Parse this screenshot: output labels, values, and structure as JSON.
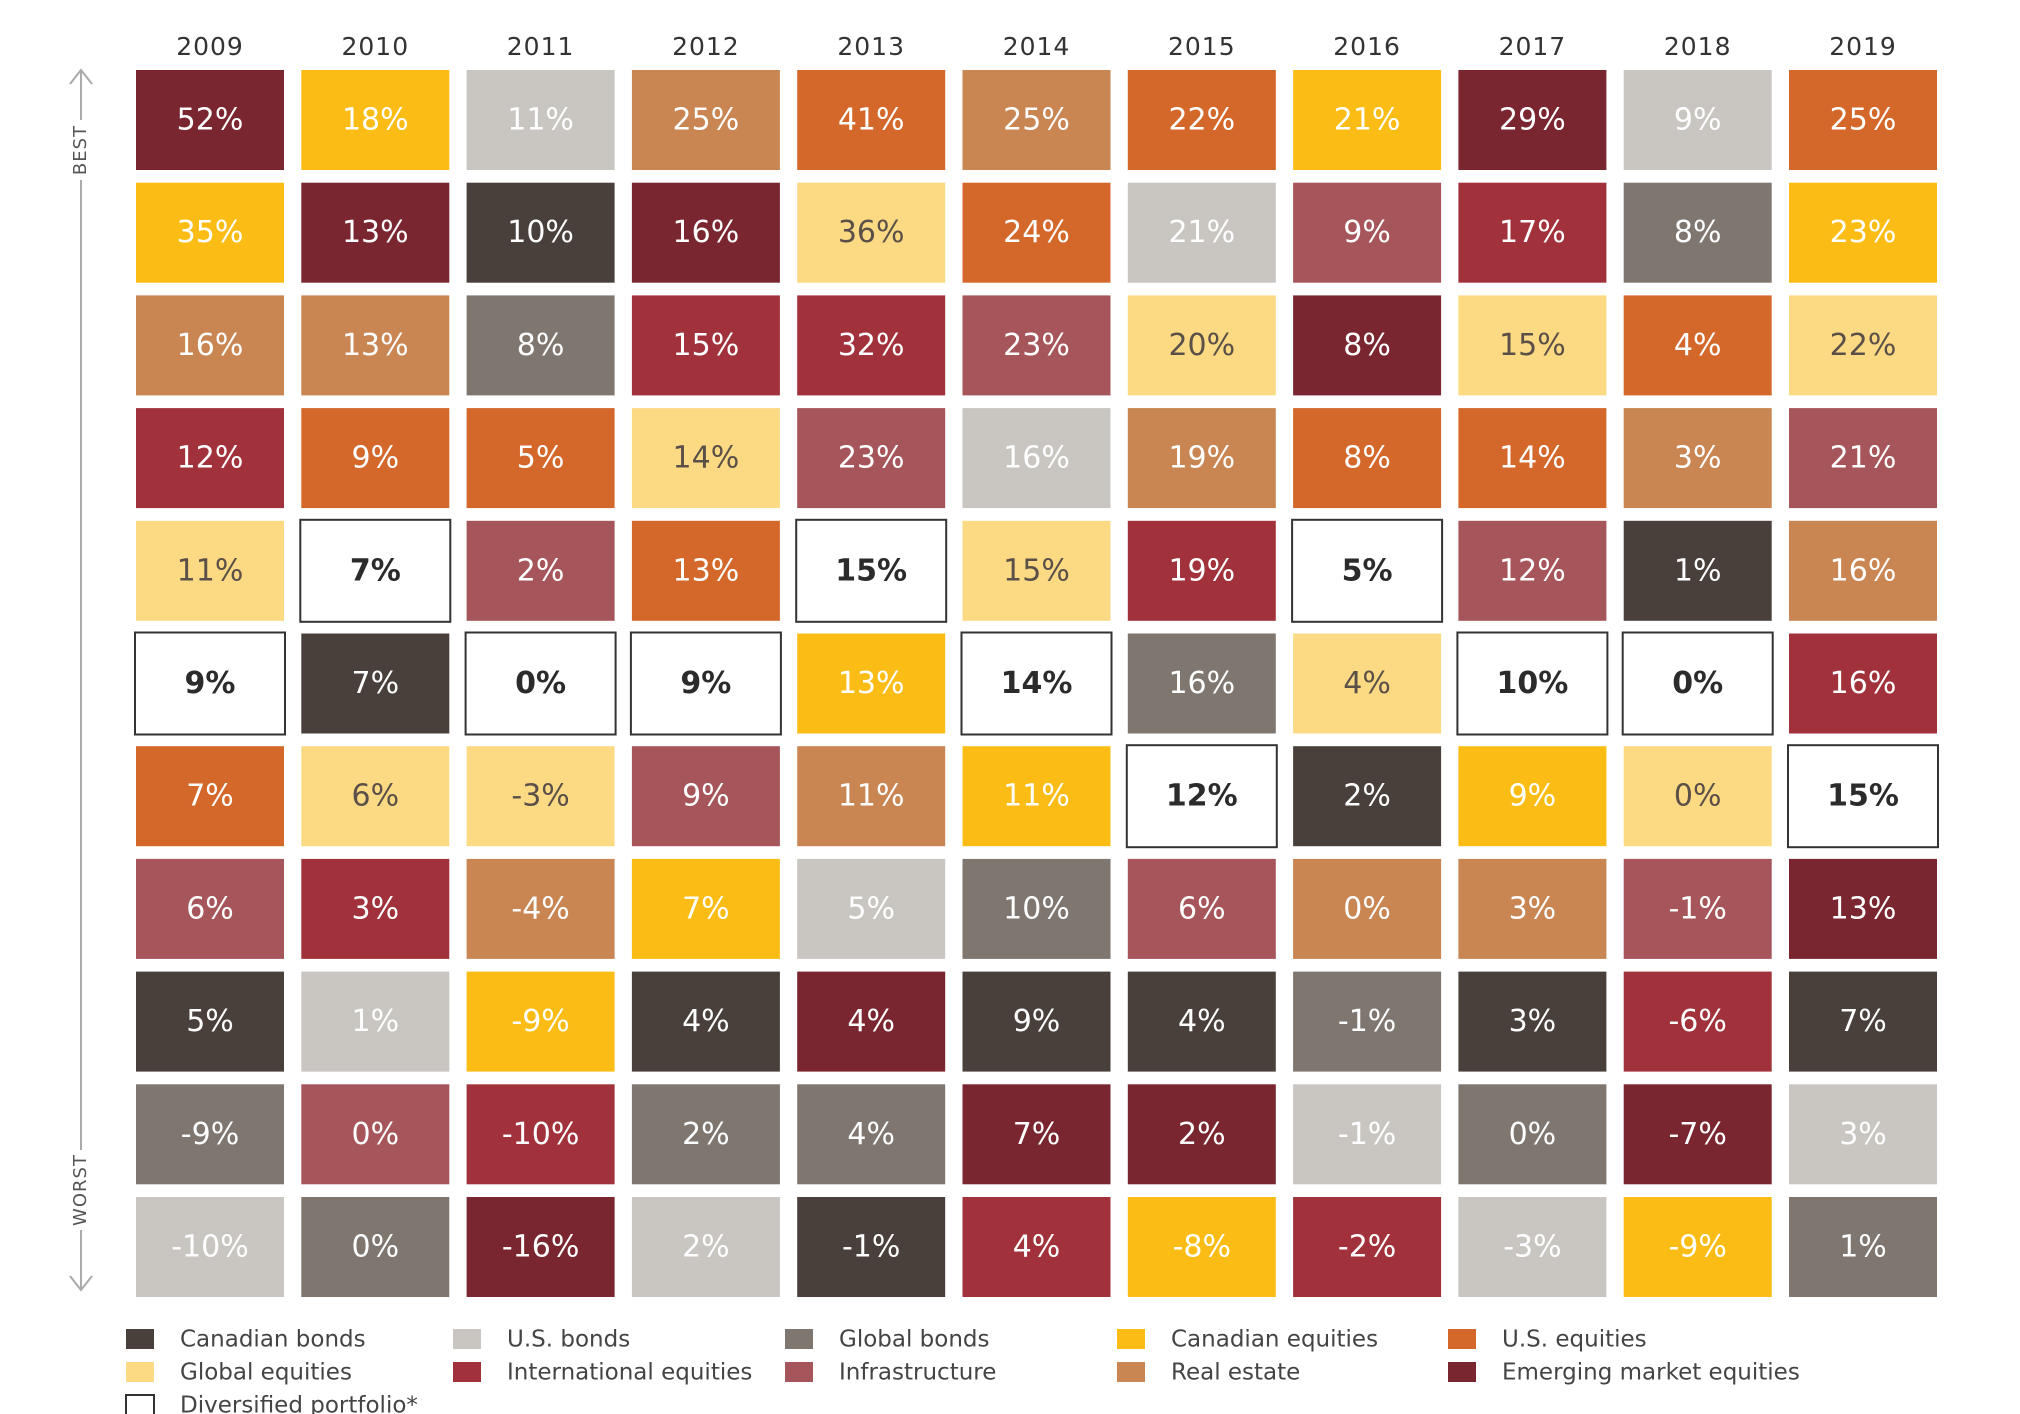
{
  "chart_data": {
    "type": "ranked-grid",
    "categories": [
      "2009",
      "2010",
      "2011",
      "2012",
      "2013",
      "2014",
      "2015",
      "2016",
      "2017",
      "2018",
      "2019"
    ],
    "best_label": "BEST",
    "worst_label": "WORST",
    "series": [
      {
        "name": "Canadian bonds",
        "color": "#4a403b"
      },
      {
        "name": "U.S. bonds",
        "color": "#c9c5c1"
      },
      {
        "name": "Global bonds",
        "color": "#7e766f"
      },
      {
        "name": "Canadian equities",
        "color": "#fbbd15"
      },
      {
        "name": "U.S. equities",
        "color": "#d4682b"
      },
      {
        "name": "Global equities",
        "color": "#fcd983"
      },
      {
        "name": "International equities",
        "color": "#a1323c"
      },
      {
        "name": "Infrastructure",
        "color": "#a6555b"
      },
      {
        "name": "Real estate",
        "color": "#c98552"
      },
      {
        "name": "Emerging market equities",
        "color": "#7a2630"
      },
      {
        "name": "Diversified portfolio*",
        "color": "#ffffff"
      }
    ],
    "columns": [
      {
        "values": [
          52,
          35,
          16,
          12,
          11,
          9,
          7,
          6,
          5,
          -9,
          -10
        ],
        "value_labels": [
          "52%",
          "35%",
          "16%",
          "12%",
          "11%",
          "9%",
          "7%",
          "6%",
          "5%",
          "-9%",
          "-10%"
        ],
        "classes": [
          "Emerging market equities",
          "Canadian equities",
          "Real estate",
          "International equities",
          "Global equities",
          "Diversified portfolio*",
          "U.S. equities",
          "Infrastructure",
          "Canadian bonds",
          "Global bonds",
          "U.S. bonds"
        ]
      },
      {
        "values": [
          18,
          13,
          13,
          9,
          7,
          7,
          6,
          3,
          1,
          0,
          0
        ],
        "value_labels": [
          "18%",
          "13%",
          "13%",
          "9%",
          "7%",
          "7%",
          "6%",
          "3%",
          "1%",
          "0%",
          "0%"
        ],
        "classes": [
          "Canadian equities",
          "Emerging market equities",
          "Real estate",
          "U.S. equities",
          "Diversified portfolio*",
          "Canadian bonds",
          "Global equities",
          "International equities",
          "U.S. bonds",
          "Infrastructure",
          "Global bonds"
        ]
      },
      {
        "values": [
          11,
          10,
          8,
          5,
          2,
          0,
          -3,
          -4,
          -9,
          -10,
          -16
        ],
        "value_labels": [
          "11%",
          "10%",
          "8%",
          "5%",
          "2%",
          "0%",
          "-3%",
          "-4%",
          "-9%",
          "-10%",
          "-16%"
        ],
        "classes": [
          "U.S. bonds",
          "Canadian bonds",
          "Global bonds",
          "U.S. equities",
          "Infrastructure",
          "Diversified portfolio*",
          "Global equities",
          "Real estate",
          "Canadian equities",
          "International equities",
          "Emerging market equities"
        ]
      },
      {
        "values": [
          25,
          16,
          15,
          14,
          13,
          9,
          9,
          7,
          4,
          2,
          2
        ],
        "value_labels": [
          "25%",
          "16%",
          "15%",
          "14%",
          "13%",
          "9%",
          "9%",
          "7%",
          "4%",
          "2%",
          "2%"
        ],
        "classes": [
          "Real estate",
          "Emerging market equities",
          "International equities",
          "Global equities",
          "U.S. equities",
          "Diversified portfolio*",
          "Infrastructure",
          "Canadian equities",
          "Canadian bonds",
          "Global bonds",
          "U.S. bonds"
        ]
      },
      {
        "values": [
          41,
          36,
          32,
          23,
          15,
          13,
          11,
          5,
          4,
          4,
          -1
        ],
        "value_labels": [
          "41%",
          "36%",
          "32%",
          "23%",
          "15%",
          "13%",
          "11%",
          "5%",
          "4%",
          "4%",
          "-1%"
        ],
        "classes": [
          "U.S. equities",
          "Global equities",
          "International equities",
          "Infrastructure",
          "Diversified portfolio*",
          "Canadian equities",
          "Real estate",
          "U.S. bonds",
          "Emerging market equities",
          "Global bonds",
          "Canadian bonds"
        ]
      },
      {
        "values": [
          25,
          24,
          23,
          16,
          15,
          14,
          11,
          10,
          9,
          7,
          4
        ],
        "value_labels": [
          "25%",
          "24%",
          "23%",
          "16%",
          "15%",
          "14%",
          "11%",
          "10%",
          "9%",
          "7%",
          "4%"
        ],
        "classes": [
          "Real estate",
          "U.S. equities",
          "Infrastructure",
          "U.S. bonds",
          "Global equities",
          "Diversified portfolio*",
          "Canadian equities",
          "Global bonds",
          "Canadian bonds",
          "Emerging market equities",
          "International equities"
        ]
      },
      {
        "values": [
          22,
          21,
          20,
          19,
          19,
          16,
          12,
          6,
          4,
          2,
          -8
        ],
        "value_labels": [
          "22%",
          "21%",
          "20%",
          "19%",
          "19%",
          "16%",
          "12%",
          "6%",
          "4%",
          "2%",
          "-8%"
        ],
        "classes": [
          "U.S. equities",
          "U.S. bonds",
          "Global equities",
          "Real estate",
          "International equities",
          "Global bonds",
          "Diversified portfolio*",
          "Infrastructure",
          "Canadian bonds",
          "Emerging market equities",
          "Canadian equities"
        ]
      },
      {
        "values": [
          21,
          9,
          8,
          8,
          5,
          4,
          2,
          0,
          -1,
          -1,
          -2
        ],
        "value_labels": [
          "21%",
          "9%",
          "8%",
          "8%",
          "5%",
          "4%",
          "2%",
          "0%",
          "-1%",
          "-1%",
          "-2%"
        ],
        "classes": [
          "Canadian equities",
          "Infrastructure",
          "Emerging market equities",
          "U.S. equities",
          "Diversified portfolio*",
          "Global equities",
          "Canadian bonds",
          "Real estate",
          "Global bonds",
          "U.S. bonds",
          "International equities"
        ]
      },
      {
        "values": [
          29,
          17,
          15,
          14,
          12,
          10,
          9,
          3,
          3,
          0,
          -3
        ],
        "value_labels": [
          "29%",
          "17%",
          "15%",
          "14%",
          "12%",
          "10%",
          "9%",
          "3%",
          "3%",
          "0%",
          "-3%"
        ],
        "classes": [
          "Emerging market equities",
          "International equities",
          "Global equities",
          "U.S. equities",
          "Infrastructure",
          "Diversified portfolio*",
          "Canadian equities",
          "Real estate",
          "Canadian bonds",
          "Global bonds",
          "U.S. bonds"
        ]
      },
      {
        "values": [
          9,
          8,
          4,
          3,
          1,
          0,
          0,
          -1,
          -6,
          -7,
          -9
        ],
        "value_labels": [
          "9%",
          "8%",
          "4%",
          "3%",
          "1%",
          "0%",
          "0%",
          "-1%",
          "-6%",
          "-7%",
          "-9%"
        ],
        "classes": [
          "U.S. bonds",
          "Global bonds",
          "U.S. equities",
          "Real estate",
          "Canadian bonds",
          "Diversified portfolio*",
          "Global equities",
          "Infrastructure",
          "International equities",
          "Emerging market equities",
          "Canadian equities"
        ]
      },
      {
        "values": [
          25,
          23,
          22,
          21,
          16,
          16,
          15,
          13,
          7,
          3,
          1
        ],
        "value_labels": [
          "25%",
          "23%",
          "22%",
          "21%",
          "16%",
          "16%",
          "15%",
          "13%",
          "7%",
          "3%",
          "1%"
        ],
        "classes": [
          "U.S. equities",
          "Canadian equities",
          "Global equities",
          "Infrastructure",
          "Real estate",
          "International equities",
          "Diversified portfolio*",
          "Emerging market equities",
          "Canadian bonds",
          "U.S. bonds",
          "Global bonds"
        ]
      }
    ]
  }
}
